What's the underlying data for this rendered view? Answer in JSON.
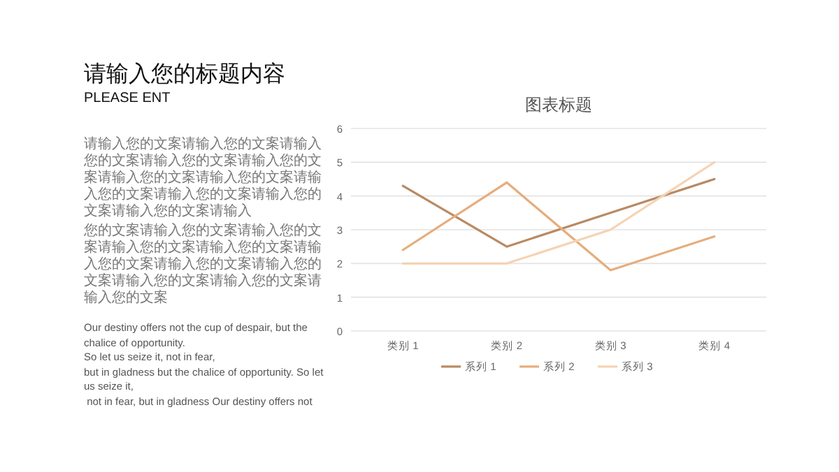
{
  "chart_data": {
    "type": "line",
    "title": "图表标题",
    "categories": [
      "类别 1",
      "类别 2",
      "类别 3",
      "类别 4"
    ],
    "series": [
      {
        "name": "系列 1",
        "color": "#b98a63",
        "values": [
          4.3,
          2.5,
          3.5,
          4.5
        ]
      },
      {
        "name": "系列 2",
        "color": "#e6ad7c",
        "values": [
          2.4,
          4.4,
          1.8,
          2.8
        ]
      },
      {
        "name": "系列 3",
        "color": "#f5d3b3",
        "values": [
          2.0,
          2.0,
          3.0,
          5.0
        ]
      }
    ],
    "ylim": [
      0,
      6
    ],
    "yticks": [
      0,
      1,
      2,
      3,
      4,
      5,
      6
    ],
    "grid": "y",
    "legend": "bottom",
    "annotations": [
      "请输入您的标题内容",
      "PLEASE ENT",
      "请输入您的文案请输入您的文案请输入您的文案请输入您的文案请输入您的文案请输入您的文案请输入您的文案请输入您的文案请输入您的文案请输入您的文案请输入您的文案请输入",
      "您的文案请输入您的文案请输入您的文案请输入您的文案请输入您的文案请输入您的文案请输入您的文案请输入您的文案请输入您的文案请输入您的文案请输入您的文案",
      "Our destiny offers not the cup of despair, but the chalice of opportunity.",
      "So let us seize it, not in fear,",
      "but in gladness but the chalice of opportunity. So let us seize it,",
      " not in fear, but in gladness Our destiny offers not"
    ]
  }
}
